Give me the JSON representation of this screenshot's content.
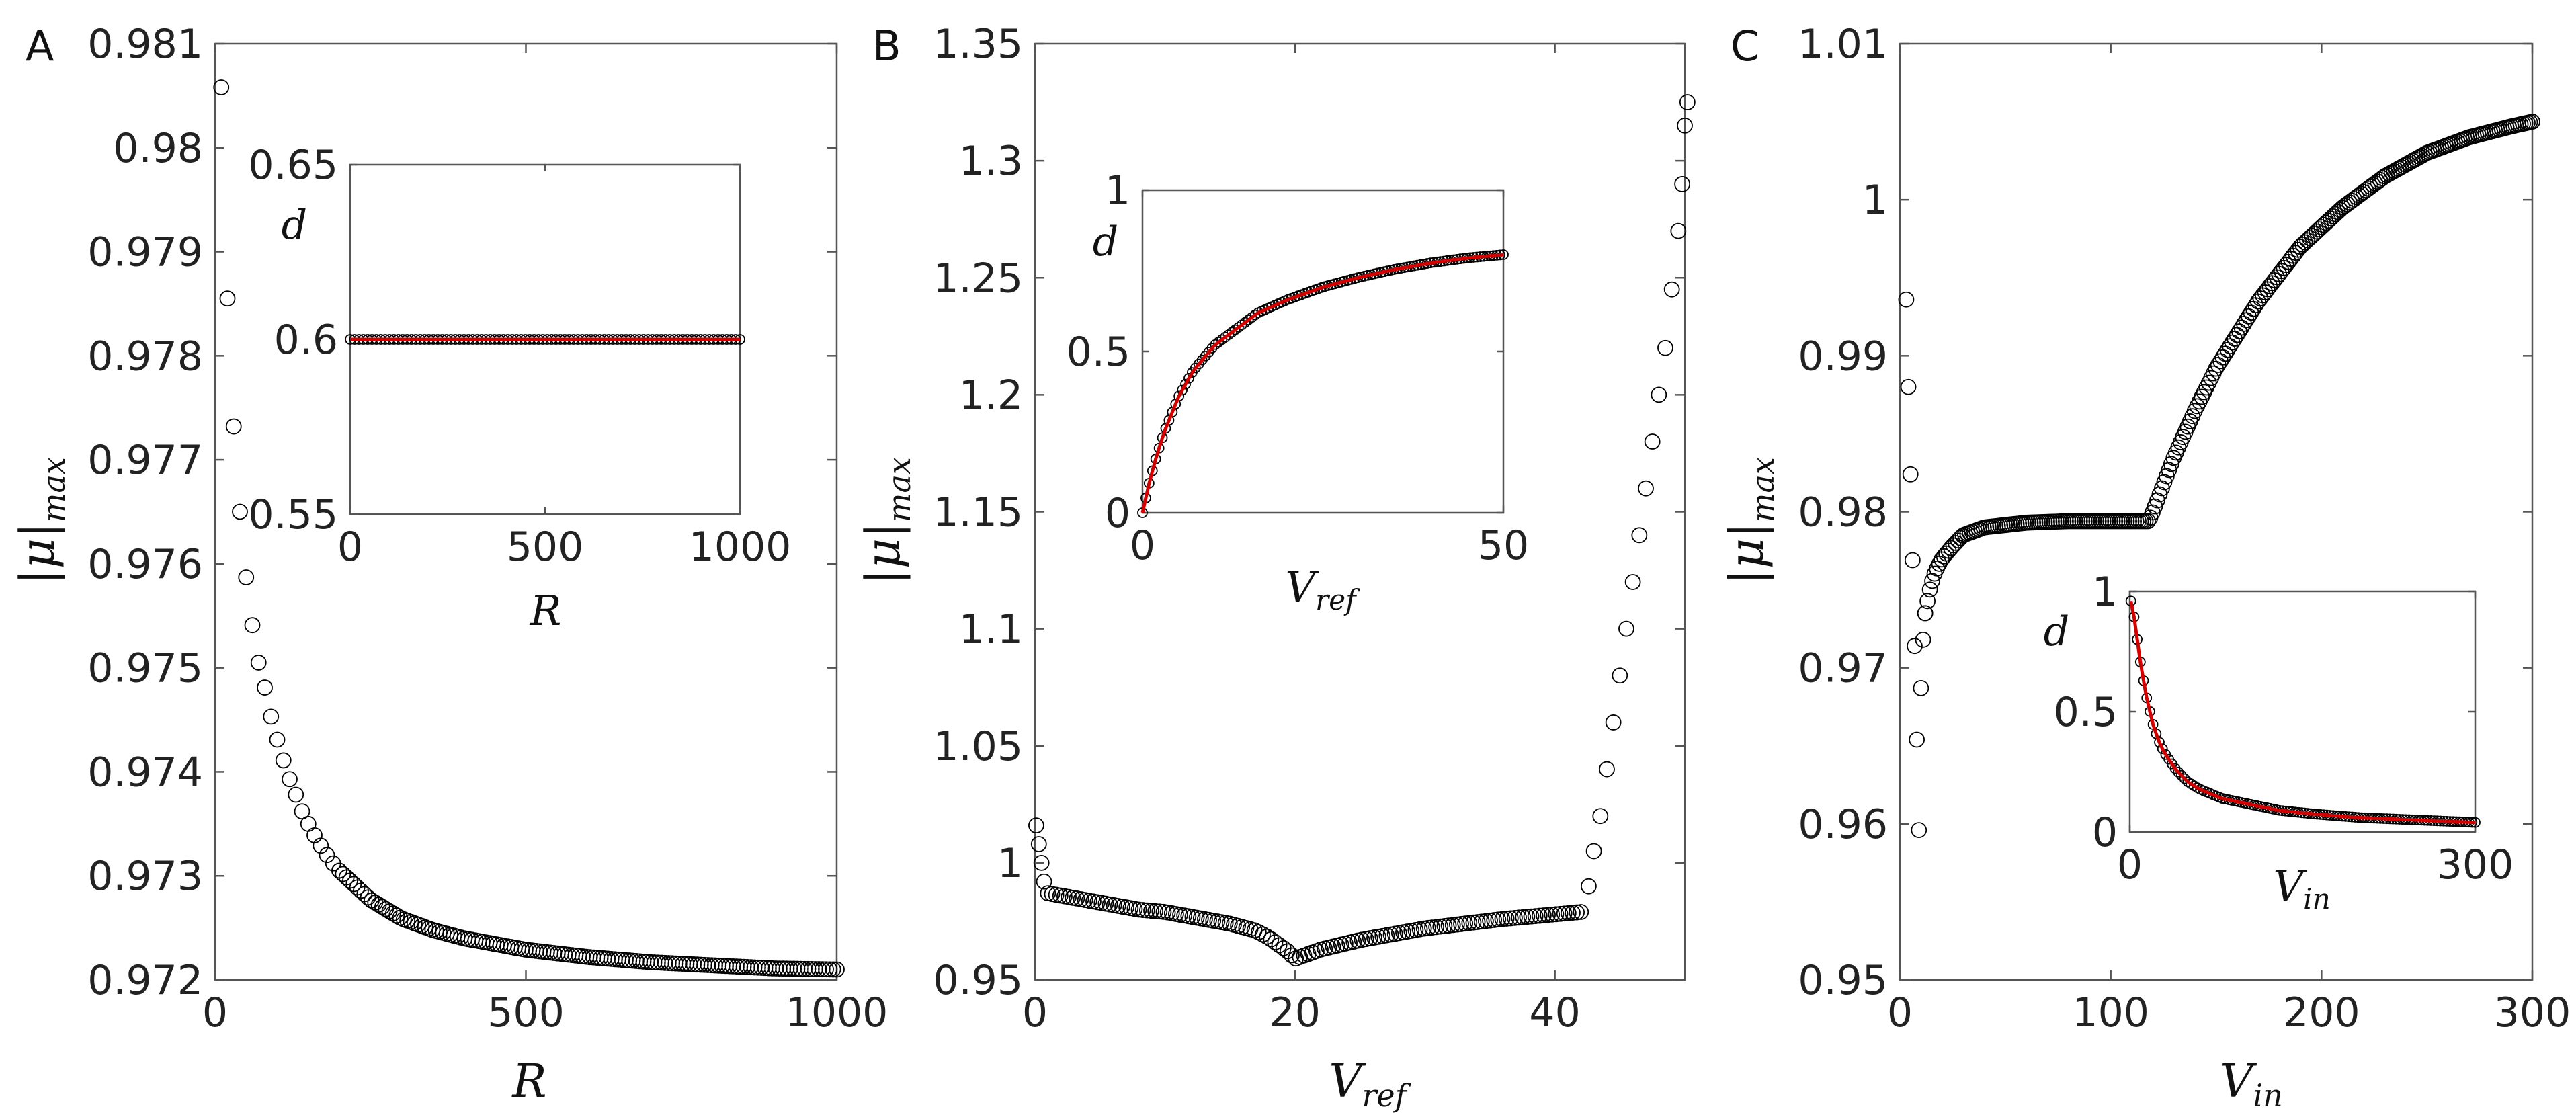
{
  "figure": {
    "panels": [
      "A",
      "B",
      "C"
    ],
    "abs_mu": "|μ|",
    "sub_max": "max",
    "sub_ref": "ref",
    "sub_in": "in",
    "sym_V": "V",
    "sym_R": "R",
    "sym_d": "d"
  },
  "style": {
    "marker_edge": "#000000",
    "fit_color": "#d40000"
  },
  "chart_data": [
    {
      "panel": "A",
      "type": "scatter",
      "xlabel": "R",
      "ylabel": "|μ|_max",
      "xlim": [
        0,
        1000
      ],
      "ylim": [
        0.972,
        0.981
      ],
      "xticks": [
        "0",
        "500",
        "1000"
      ],
      "yticks": [
        "0.972",
        "0.973",
        "0.974",
        "0.975",
        "0.976",
        "0.977",
        "0.978",
        "0.979",
        "0.98",
        "0.981"
      ],
      "series": [
        {
          "name": "|μ|_max",
          "marker": "open-circle",
          "points": [
            [
              10,
              0.98058
            ],
            [
              20,
              0.97855
            ],
            [
              30,
              0.97732
            ],
            [
              40,
              0.9765
            ],
            [
              50,
              0.97587
            ],
            [
              60,
              0.97541
            ],
            [
              70,
              0.97505
            ],
            [
              80,
              0.97481
            ],
            [
              90,
              0.97453
            ],
            [
              100,
              0.97431
            ],
            [
              110,
              0.97411
            ],
            [
              120,
              0.97393
            ],
            [
              130,
              0.97378
            ],
            [
              140,
              0.97362
            ],
            [
              150,
              0.9735
            ],
            [
              160,
              0.97339
            ],
            [
              170,
              0.97329
            ],
            [
              180,
              0.9732
            ],
            [
              190,
              0.97312
            ],
            [
              200,
              0.97305
            ],
            [
              250,
              0.97277
            ],
            [
              300,
              0.97259
            ],
            [
              350,
              0.97248
            ],
            [
              400,
              0.9724
            ],
            [
              500,
              0.97229
            ],
            [
              600,
              0.97222
            ],
            [
              700,
              0.97217
            ],
            [
              800,
              0.97214
            ],
            [
              900,
              0.97211
            ],
            [
              1000,
              0.9721
            ]
          ]
        }
      ],
      "inset": {
        "type": "scatter",
        "xlabel": "R",
        "ylabel": "d",
        "xlim": [
          0,
          1000
        ],
        "ylim": [
          0.55,
          0.65
        ],
        "xticks": [
          "0",
          "500",
          "1000"
        ],
        "yticks": [
          "0.55",
          "0.6",
          "0.65"
        ],
        "series": [
          {
            "name": "d",
            "constant": 0.6,
            "x_range": [
              0,
              1000
            ]
          }
        ],
        "fit": {
          "name": "fit",
          "color": "#d40000"
        }
      }
    },
    {
      "panel": "B",
      "type": "scatter",
      "xlabel": "V_ref",
      "ylabel": "|μ|_max",
      "xlim": [
        0,
        50
      ],
      "ylim": [
        0.95,
        1.35
      ],
      "xticks": [
        "0",
        "20",
        "40"
      ],
      "yticks": [
        "0.95",
        "1",
        "1.05",
        "1.1",
        "1.15",
        "1.2",
        "1.25",
        "1.3",
        "1.35"
      ],
      "series": [
        {
          "name": "|μ|_max",
          "marker": "open-circle",
          "points": [
            [
              0.1,
              1.016
            ],
            [
              0.3,
              1.008
            ],
            [
              0.5,
              1.0
            ],
            [
              0.7,
              0.992
            ],
            [
              1,
              0.987
            ],
            [
              3,
              0.985
            ],
            [
              5,
              0.983
            ],
            [
              8,
              0.98
            ],
            [
              10,
              0.979
            ],
            [
              12,
              0.977
            ],
            [
              15,
              0.974
            ],
            [
              17,
              0.971
            ],
            [
              18,
              0.968
            ],
            [
              19,
              0.964
            ],
            [
              19.5,
              0.962
            ],
            [
              20,
              0.959
            ],
            [
              22,
              0.963
            ],
            [
              25,
              0.967
            ],
            [
              28,
              0.97
            ],
            [
              30,
              0.972
            ],
            [
              33,
              0.974
            ],
            [
              36,
              0.976
            ],
            [
              40,
              0.978
            ],
            [
              42,
              0.979
            ],
            [
              42.6,
              0.99
            ],
            [
              43,
              1.005
            ],
            [
              43.5,
              1.02
            ],
            [
              44,
              1.04
            ],
            [
              44.5,
              1.06
            ],
            [
              45,
              1.08
            ],
            [
              45.5,
              1.1
            ],
            [
              46,
              1.12
            ],
            [
              46.5,
              1.14
            ],
            [
              47,
              1.16
            ],
            [
              47.5,
              1.18
            ],
            [
              48,
              1.2
            ],
            [
              48.5,
              1.22
            ],
            [
              49,
              1.245
            ],
            [
              49.5,
              1.27
            ],
            [
              49.8,
              1.29
            ],
            [
              50,
              1.315
            ],
            [
              50.2,
              1.325
            ]
          ]
        }
      ],
      "inset": {
        "type": "scatter",
        "xlabel": "V_ref",
        "ylabel": "d",
        "xlim": [
          0,
          50
        ],
        "ylim": [
          0,
          1
        ],
        "xticks": [
          "0",
          "50"
        ],
        "yticks": [
          "0",
          "0.5",
          "1"
        ],
        "series": [
          {
            "name": "d",
            "points": [
              [
                0,
                0.0
              ],
              [
                0.5,
                0.05
              ],
              [
                1,
                0.1
              ],
              [
                2,
                0.18
              ],
              [
                3,
                0.25
              ],
              [
                5,
                0.36
              ],
              [
                7,
                0.44
              ],
              [
                10,
                0.52
              ],
              [
                13,
                0.57
              ],
              [
                16,
                0.62
              ],
              [
                20,
                0.66
              ],
              [
                25,
                0.7
              ],
              [
                30,
                0.73
              ],
              [
                35,
                0.755
              ],
              [
                40,
                0.775
              ],
              [
                45,
                0.79
              ],
              [
                50,
                0.8
              ]
            ]
          }
        ],
        "fit": {
          "name": "fit",
          "color": "#d40000"
        }
      }
    },
    {
      "panel": "C",
      "type": "scatter",
      "xlabel": "V_in",
      "ylabel": "|μ|_max",
      "xlim": [
        0,
        300
      ],
      "ylim": [
        0.95,
        1.01
      ],
      "xticks": [
        "0",
        "100",
        "200",
        "300"
      ],
      "yticks": [
        "0.95",
        "0.96",
        "0.97",
        "0.98",
        "0.99",
        "1",
        "1.01"
      ],
      "series": [
        {
          "name": "|μ|_max",
          "marker": "open-circle",
          "points": [
            [
              3,
              0.9936
            ],
            [
              4,
              0.988
            ],
            [
              5,
              0.9824
            ],
            [
              6,
              0.9769
            ],
            [
              7,
              0.9714
            ],
            [
              8,
              0.9654
            ],
            [
              9,
              0.9596
            ],
            [
              10,
              0.9687
            ],
            [
              11,
              0.9718
            ],
            [
              12,
              0.9735
            ],
            [
              14,
              0.9749
            ],
            [
              16,
              0.9759
            ],
            [
              18,
              0.9765
            ],
            [
              20,
              0.977
            ],
            [
              25,
              0.9778
            ],
            [
              30,
              0.9785
            ],
            [
              40,
              0.979
            ],
            [
              60,
              0.9793
            ],
            [
              80,
              0.9794
            ],
            [
              100,
              0.9794
            ],
            [
              118,
              0.9794
            ],
            [
              120,
              0.98
            ],
            [
              130,
              0.9835
            ],
            [
              140,
              0.9865
            ],
            [
              150,
              0.9892
            ],
            [
              170,
              0.9935
            ],
            [
              190,
              0.997
            ],
            [
              210,
              0.9995
            ],
            [
              230,
              1.0015
            ],
            [
              250,
              1.003
            ],
            [
              270,
              1.004
            ],
            [
              290,
              1.0047
            ],
            [
              300,
              1.005
            ]
          ]
        }
      ],
      "inset": {
        "type": "scatter",
        "xlabel": "V_in",
        "ylabel": "d",
        "xlim": [
          0,
          300
        ],
        "ylim": [
          0,
          1
        ],
        "xticks": [
          "0",
          "300"
        ],
        "yticks": [
          "0",
          "0.5",
          "1"
        ],
        "series": [
          {
            "name": "d",
            "points": [
              [
                1,
                0.96
              ],
              [
                3,
                0.92
              ],
              [
                5,
                0.85
              ],
              [
                8,
                0.75
              ],
              [
                10,
                0.68
              ],
              [
                15,
                0.55
              ],
              [
                20,
                0.45
              ],
              [
                25,
                0.38
              ],
              [
                30,
                0.33
              ],
              [
                40,
                0.26
              ],
              [
                50,
                0.21
              ],
              [
                60,
                0.18
              ],
              [
                80,
                0.14
              ],
              [
                100,
                0.12
              ],
              [
                130,
                0.09
              ],
              [
                160,
                0.075
              ],
              [
                200,
                0.06
              ],
              [
                250,
                0.05
              ],
              [
                300,
                0.04
              ]
            ]
          }
        ],
        "fit": {
          "name": "fit",
          "color": "#d40000"
        }
      }
    }
  ]
}
